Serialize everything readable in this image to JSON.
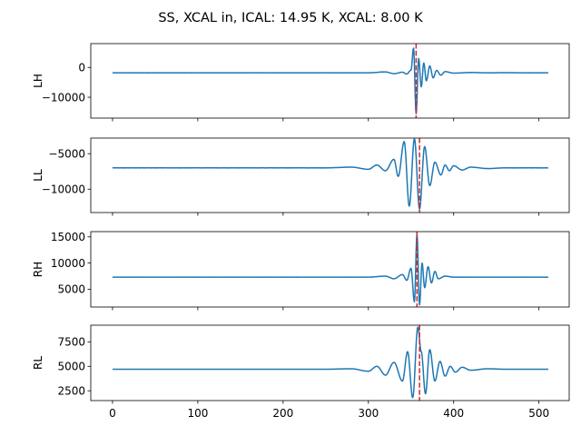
{
  "chart_data": {
    "type": "line",
    "title": "SS, XCAL in, ICAL: 14.95 K, XCAL: 8.00 K",
    "xlim": [
      -25.5,
      535.5
    ],
    "xticks": [
      0,
      100,
      200,
      300,
      400,
      500
    ],
    "xtick_labels": [
      "0",
      "100",
      "200",
      "300",
      "400",
      "500"
    ],
    "line_color": "#1f77b4",
    "marker_color": "#d62728",
    "subplots": [
      {
        "ylabel": "LH",
        "ylim": [
          -17000,
          8000
        ],
        "yticks": [
          0,
          -10000
        ],
        "ytick_labels": [
          "0",
          "−10000"
        ],
        "baseline": -1800,
        "vline_x": 356,
        "x": [
          0,
          100,
          200,
          300,
          320,
          330,
          340,
          345,
          350,
          353,
          356,
          359,
          362,
          365,
          368,
          372,
          376,
          380,
          385,
          390,
          400,
          420,
          440,
          460,
          480,
          511
        ],
        "y": [
          -1800,
          -1800,
          -1800,
          -1800,
          -1500,
          -2100,
          -1600,
          -2200,
          -900,
          6500,
          -15500,
          3000,
          -6500,
          1500,
          -4500,
          500,
          -3500,
          -1000,
          -2600,
          -1400,
          -1900,
          -1700,
          -1800,
          -1750,
          -1800,
          -1800
        ]
      },
      {
        "ylabel": "LL",
        "ylim": [
          -13300,
          -2800
        ],
        "yticks": [
          -5000,
          -10000
        ],
        "ytick_labels": [
          "−5000",
          "−10000"
        ],
        "baseline": -7000,
        "vline_x": 360,
        "x": [
          0,
          50,
          100,
          200,
          250,
          280,
          300,
          310,
          320,
          330,
          335,
          342,
          348,
          354,
          360,
          366,
          372,
          378,
          385,
          390,
          395,
          400,
          410,
          420,
          440,
          460,
          480,
          511
        ],
        "y": [
          -7000,
          -7000,
          -7000,
          -7000,
          -7000,
          -6900,
          -7200,
          -6600,
          -7400,
          -5800,
          -8200,
          -3300,
          -12400,
          -2900,
          -12800,
          -4000,
          -9500,
          -6200,
          -8000,
          -6600,
          -7400,
          -6700,
          -7300,
          -6900,
          -7100,
          -7000,
          -7000,
          -7000
        ],
        "note": "markers: approximate oscillation envelope around central pulse"
      },
      {
        "ylabel": "RH",
        "ylim": [
          1600,
          16000
        ],
        "yticks": [
          15000,
          10000,
          5000
        ],
        "ytick_labels": [
          "15000",
          "10000",
          "5000"
        ],
        "baseline": 7300,
        "vline_x": 357,
        "x": [
          0,
          100,
          200,
          300,
          320,
          330,
          340,
          345,
          350,
          354,
          357,
          360,
          363,
          366,
          370,
          374,
          378,
          382,
          390,
          400,
          420,
          460,
          511
        ],
        "y": [
          7300,
          7300,
          7300,
          7300,
          7500,
          7000,
          7800,
          6700,
          9000,
          2600,
          15500,
          2000,
          10000,
          5300,
          9300,
          6200,
          8400,
          7000,
          7500,
          7300,
          7300,
          7300,
          7300
        ]
      },
      {
        "ylabel": "RL",
        "ylim": [
          1500,
          9200
        ],
        "yticks": [
          7500,
          5000,
          2500
        ],
        "ytick_labels": [
          "7500",
          "5000",
          "2500"
        ],
        "baseline": 4700,
        "vline_x": 360,
        "x": [
          0,
          100,
          200,
          250,
          280,
          300,
          310,
          320,
          330,
          340,
          346,
          352,
          358,
          362,
          367,
          372,
          378,
          384,
          390,
          396,
          402,
          410,
          420,
          440,
          460,
          480,
          511
        ],
        "y": [
          4700,
          4700,
          4700,
          4700,
          4750,
          4500,
          5000,
          4100,
          5400,
          3500,
          6500,
          1800,
          9000,
          6500,
          2200,
          6700,
          3500,
          5500,
          4000,
          5000,
          4400,
          4900,
          4600,
          4750,
          4700,
          4700,
          4700
        ]
      }
    ]
  }
}
